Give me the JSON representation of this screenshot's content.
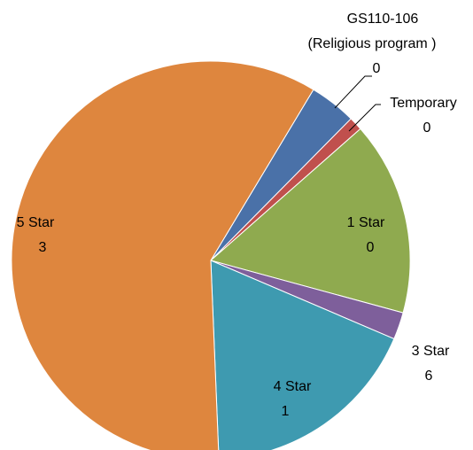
{
  "chart_data": {
    "type": "pie",
    "categories": [
      [
        "GS110-106",
        "(Religious program  )"
      ],
      [
        "Temporary"
      ],
      [
        "1 Star"
      ],
      [
        "3 Star"
      ],
      [
        "4 Star"
      ],
      [
        "5 Star"
      ]
    ],
    "label_numbers": [
      "0",
      "0",
      "0",
      "6",
      "1",
      "3"
    ],
    "values": [
      3.8,
      1.1,
      15.7,
      2.2,
      17.9,
      59.2
    ],
    "colors": [
      "#4a71a8",
      "#c0504d",
      "#8faa4f",
      "#7e5f9b",
      "#3e9ab0",
      "#de863e"
    ],
    "startangle": 31,
    "direction": "clockwise"
  }
}
